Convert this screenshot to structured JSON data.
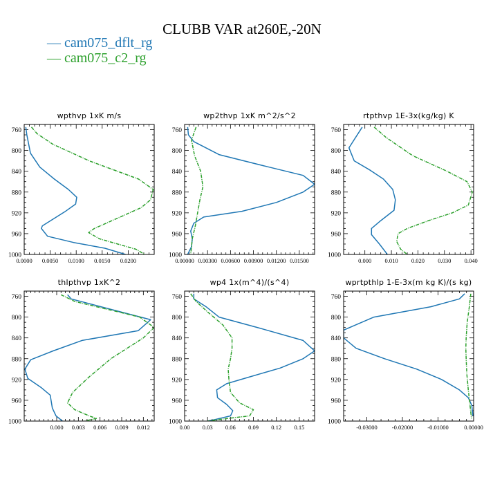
{
  "figure": {
    "title": "CLUBB VAR at260E,-20N",
    "legend": [
      {
        "label": "— cam075_dflt_rg",
        "color": "#1f77b4"
      },
      {
        "label": "— cam075_c2_rg",
        "color": "#2ca02c"
      }
    ]
  },
  "chart_data": [
    {
      "type": "line",
      "title": "wpthvp   1xK m/s",
      "ylim": [
        1000,
        750
      ],
      "xlim": [
        0.0,
        0.025
      ],
      "yticks": [
        "760",
        "800",
        "840",
        "880",
        "920",
        "960",
        "1000"
      ],
      "xticks": [
        {
          "v": 0.0,
          "t": "0.0000"
        },
        {
          "v": 0.005,
          "t": "0.0050"
        },
        {
          "v": 0.01,
          "t": "0.0100"
        },
        {
          "v": 0.015,
          "t": "0.0150"
        },
        {
          "v": 0.02,
          "t": "0.0200"
        }
      ],
      "series": [
        {
          "name": "cam075_dflt_rg",
          "x": [
            0.0003,
            0.0005,
            0.0012,
            0.003,
            0.0058,
            0.0085,
            0.0101,
            0.0099,
            0.0078,
            0.0035,
            0.0033,
            0.0045,
            0.0095,
            0.0155,
            0.0195
          ],
          "y": [
            755,
            770,
            805,
            832,
            855,
            875,
            890,
            903,
            918,
            945,
            950,
            965,
            977,
            988,
            1000
          ]
        },
        {
          "name": "cam075_c2_rg",
          "x": [
            0.0014,
            0.0025,
            0.0055,
            0.0125,
            0.022,
            0.0248,
            0.0243,
            0.0225,
            0.018,
            0.0135,
            0.0124,
            0.0145,
            0.018,
            0.0215,
            0.0232
          ],
          "y": [
            755,
            768,
            788,
            820,
            855,
            875,
            895,
            910,
            930,
            950,
            958,
            970,
            980,
            990,
            1000
          ]
        }
      ]
    },
    {
      "type": "line",
      "title": "wp2thvp   1xK m^2/s^2",
      "ylim": [
        1000,
        750
      ],
      "xlim": [
        0.0,
        0.017
      ],
      "yticks": [
        "760",
        "800",
        "840",
        "880",
        "920",
        "960",
        "1000"
      ],
      "xticks": [
        {
          "v": 0.0,
          "t": "0.00000"
        },
        {
          "v": 0.003,
          "t": "0.00300"
        },
        {
          "v": 0.006,
          "t": "0.00600"
        },
        {
          "v": 0.009,
          "t": "0.00900"
        },
        {
          "v": 0.012,
          "t": "0.01200"
        },
        {
          "v": 0.015,
          "t": "0.01500"
        }
      ],
      "series": [
        {
          "name": "cam075_dflt_rg",
          "x": [
            0.0004,
            0.0005,
            0.0012,
            0.0045,
            0.0105,
            0.0155,
            0.017,
            0.0155,
            0.012,
            0.0075,
            0.0025,
            0.0012,
            0.0008,
            0.001,
            0.0009,
            0.0004
          ],
          "y": [
            755,
            770,
            783,
            808,
            830,
            848,
            865,
            880,
            900,
            917,
            928,
            940,
            955,
            970,
            985,
            1000
          ]
        },
        {
          "name": "cam075_c2_rg",
          "x": [
            0.0015,
            0.0009,
            0.0013,
            0.0021,
            0.0024,
            0.002,
            0.0017,
            0.0014,
            0.001,
            0.0008
          ],
          "y": [
            755,
            780,
            810,
            840,
            870,
            895,
            920,
            945,
            970,
            1000
          ]
        }
      ]
    },
    {
      "type": "line",
      "title": "rtpthvp   1E-3x(kg/kg) K",
      "ylim": [
        1000,
        750
      ],
      "xlim": [
        -0.008,
        0.041
      ],
      "yticks": [
        "760",
        "800",
        "840",
        "880",
        "920",
        "960",
        "1000"
      ],
      "xticks": [
        {
          "v": 0.0,
          "t": "0.000"
        },
        {
          "v": 0.01,
          "t": "0.010"
        },
        {
          "v": 0.02,
          "t": "0.020"
        },
        {
          "v": 0.03,
          "t": "0.030"
        },
        {
          "v": 0.04,
          "t": "0.040"
        }
      ],
      "series": [
        {
          "name": "cam075_dflt_rg",
          "x": [
            -0.001,
            -0.006,
            -0.004,
            0.002,
            0.007,
            0.0105,
            0.0115,
            0.011,
            0.006,
            0.0025,
            0.0025,
            0.0055,
            0.0085
          ],
          "y": [
            755,
            795,
            820,
            838,
            855,
            875,
            895,
            915,
            935,
            950,
            962,
            980,
            1000
          ]
        },
        {
          "name": "cam075_c2_rg",
          "x": [
            0.0035,
            0.008,
            0.018,
            0.031,
            0.0385,
            0.0405,
            0.039,
            0.033,
            0.024,
            0.016,
            0.0125,
            0.012,
            0.0135,
            0.016
          ],
          "y": [
            755,
            775,
            810,
            840,
            860,
            880,
            905,
            920,
            935,
            950,
            960,
            975,
            990,
            1000
          ]
        }
      ]
    },
    {
      "type": "line",
      "title": "thlpthvp   1xK^2",
      "ylim": [
        1000,
        750
      ],
      "xlim": [
        -0.0045,
        0.0135
      ],
      "yticks": [
        "760",
        "800",
        "840",
        "880",
        "920",
        "960",
        "1000"
      ],
      "xticks": [
        {
          "v": 0.0,
          "t": "0.000"
        },
        {
          "v": 0.003,
          "t": "0.003"
        },
        {
          "v": 0.006,
          "t": "0.006"
        },
        {
          "v": 0.009,
          "t": "0.009"
        },
        {
          "v": 0.012,
          "t": "0.012"
        }
      ],
      "series": [
        {
          "name": "cam075_dflt_rg",
          "x": [
            0.0015,
            0.002,
            0.0075,
            0.013,
            0.0113,
            0.0035,
            -0.0005,
            -0.0036,
            -0.0044,
            -0.004,
            -0.0022,
            -0.0009,
            -0.0006,
            -0.0001,
            0.0008
          ],
          "y": [
            757,
            765,
            785,
            805,
            826,
            845,
            865,
            882,
            900,
            918,
            935,
            950,
            975,
            990,
            1000
          ]
        },
        {
          "name": "cam075_c2_rg",
          "x": [
            0.0006,
            0.0025,
            0.007,
            0.0115,
            0.0135,
            0.012,
            0.0075,
            0.0045,
            0.0022,
            0.0015,
            0.0025,
            0.0045,
            0.0055,
            0.0038
          ],
          "y": [
            757,
            770,
            785,
            800,
            820,
            840,
            880,
            915,
            945,
            965,
            978,
            990,
            995,
            1000
          ]
        }
      ]
    },
    {
      "type": "line",
      "title": "wp4   1x(m^4)/(s^4)",
      "ylim": [
        1000,
        750
      ],
      "xlim": [
        0.0,
        0.17
      ],
      "yticks": [
        "760",
        "800",
        "840",
        "880",
        "920",
        "960",
        "1000"
      ],
      "xticks": [
        {
          "v": 0.0,
          "t": "0.00"
        },
        {
          "v": 0.03,
          "t": "0.03"
        },
        {
          "v": 0.06,
          "t": "0.06"
        },
        {
          "v": 0.09,
          "t": "0.09"
        },
        {
          "v": 0.12,
          "t": "0.12"
        },
        {
          "v": 0.15,
          "t": "0.15"
        }
      ],
      "series": [
        {
          "name": "cam075_dflt_rg",
          "x": [
            0.012,
            0.012,
            0.028,
            0.045,
            0.095,
            0.155,
            0.17,
            0.155,
            0.125,
            0.085,
            0.055,
            0.042,
            0.043,
            0.055,
            0.063,
            0.06,
            0.04,
            0.03
          ],
          "y": [
            755,
            765,
            780,
            800,
            820,
            845,
            865,
            880,
            898,
            915,
            928,
            940,
            955,
            968,
            980,
            990,
            997,
            1000
          ]
        },
        {
          "name": "cam075_c2_rg",
          "x": [
            0.008,
            0.015,
            0.03,
            0.05,
            0.062,
            0.062,
            0.06,
            0.057,
            0.058,
            0.06,
            0.072,
            0.09,
            0.085,
            0.05,
            0.03
          ],
          "y": [
            755,
            770,
            790,
            815,
            840,
            860,
            880,
            900,
            920,
            945,
            965,
            978,
            990,
            996,
            1000
          ]
        }
      ]
    },
    {
      "type": "line",
      "title": "wprtpthlp   1-E-3x(m kg K)/(s kg)",
      "ylim": [
        1000,
        750
      ],
      "xlim": [
        -0.0365,
        0.0
      ],
      "yticks": [
        "760",
        "800",
        "840",
        "880",
        "920",
        "960",
        "1000"
      ],
      "xticks": [
        {
          "v": -0.03,
          "t": "-0.03000"
        },
        {
          "v": -0.02,
          "t": "-0.02000"
        },
        {
          "v": -0.01,
          "t": "-0.01000"
        },
        {
          "v": 0.0,
          "t": "0.00000"
        }
      ],
      "series": [
        {
          "name": "cam075_dflt_rg",
          "x": [
            -0.0025,
            -0.004,
            -0.012,
            -0.028,
            -0.0365,
            -0.0365,
            -0.033,
            -0.025,
            -0.016,
            -0.009,
            -0.004,
            -0.0015,
            -0.0005,
            -0.0002
          ],
          "y": [
            755,
            765,
            780,
            800,
            825,
            840,
            860,
            880,
            900,
            920,
            940,
            955,
            970,
            990
          ]
        },
        {
          "name": "cam075_c2_rg",
          "x": [
            -0.0008,
            -0.0012,
            -0.0018,
            -0.0021,
            -0.0022,
            -0.0021,
            -0.0019,
            -0.0015,
            -0.001,
            -0.0006
          ],
          "y": [
            755,
            780,
            810,
            840,
            860,
            880,
            910,
            940,
            970,
            995
          ]
        }
      ]
    }
  ]
}
